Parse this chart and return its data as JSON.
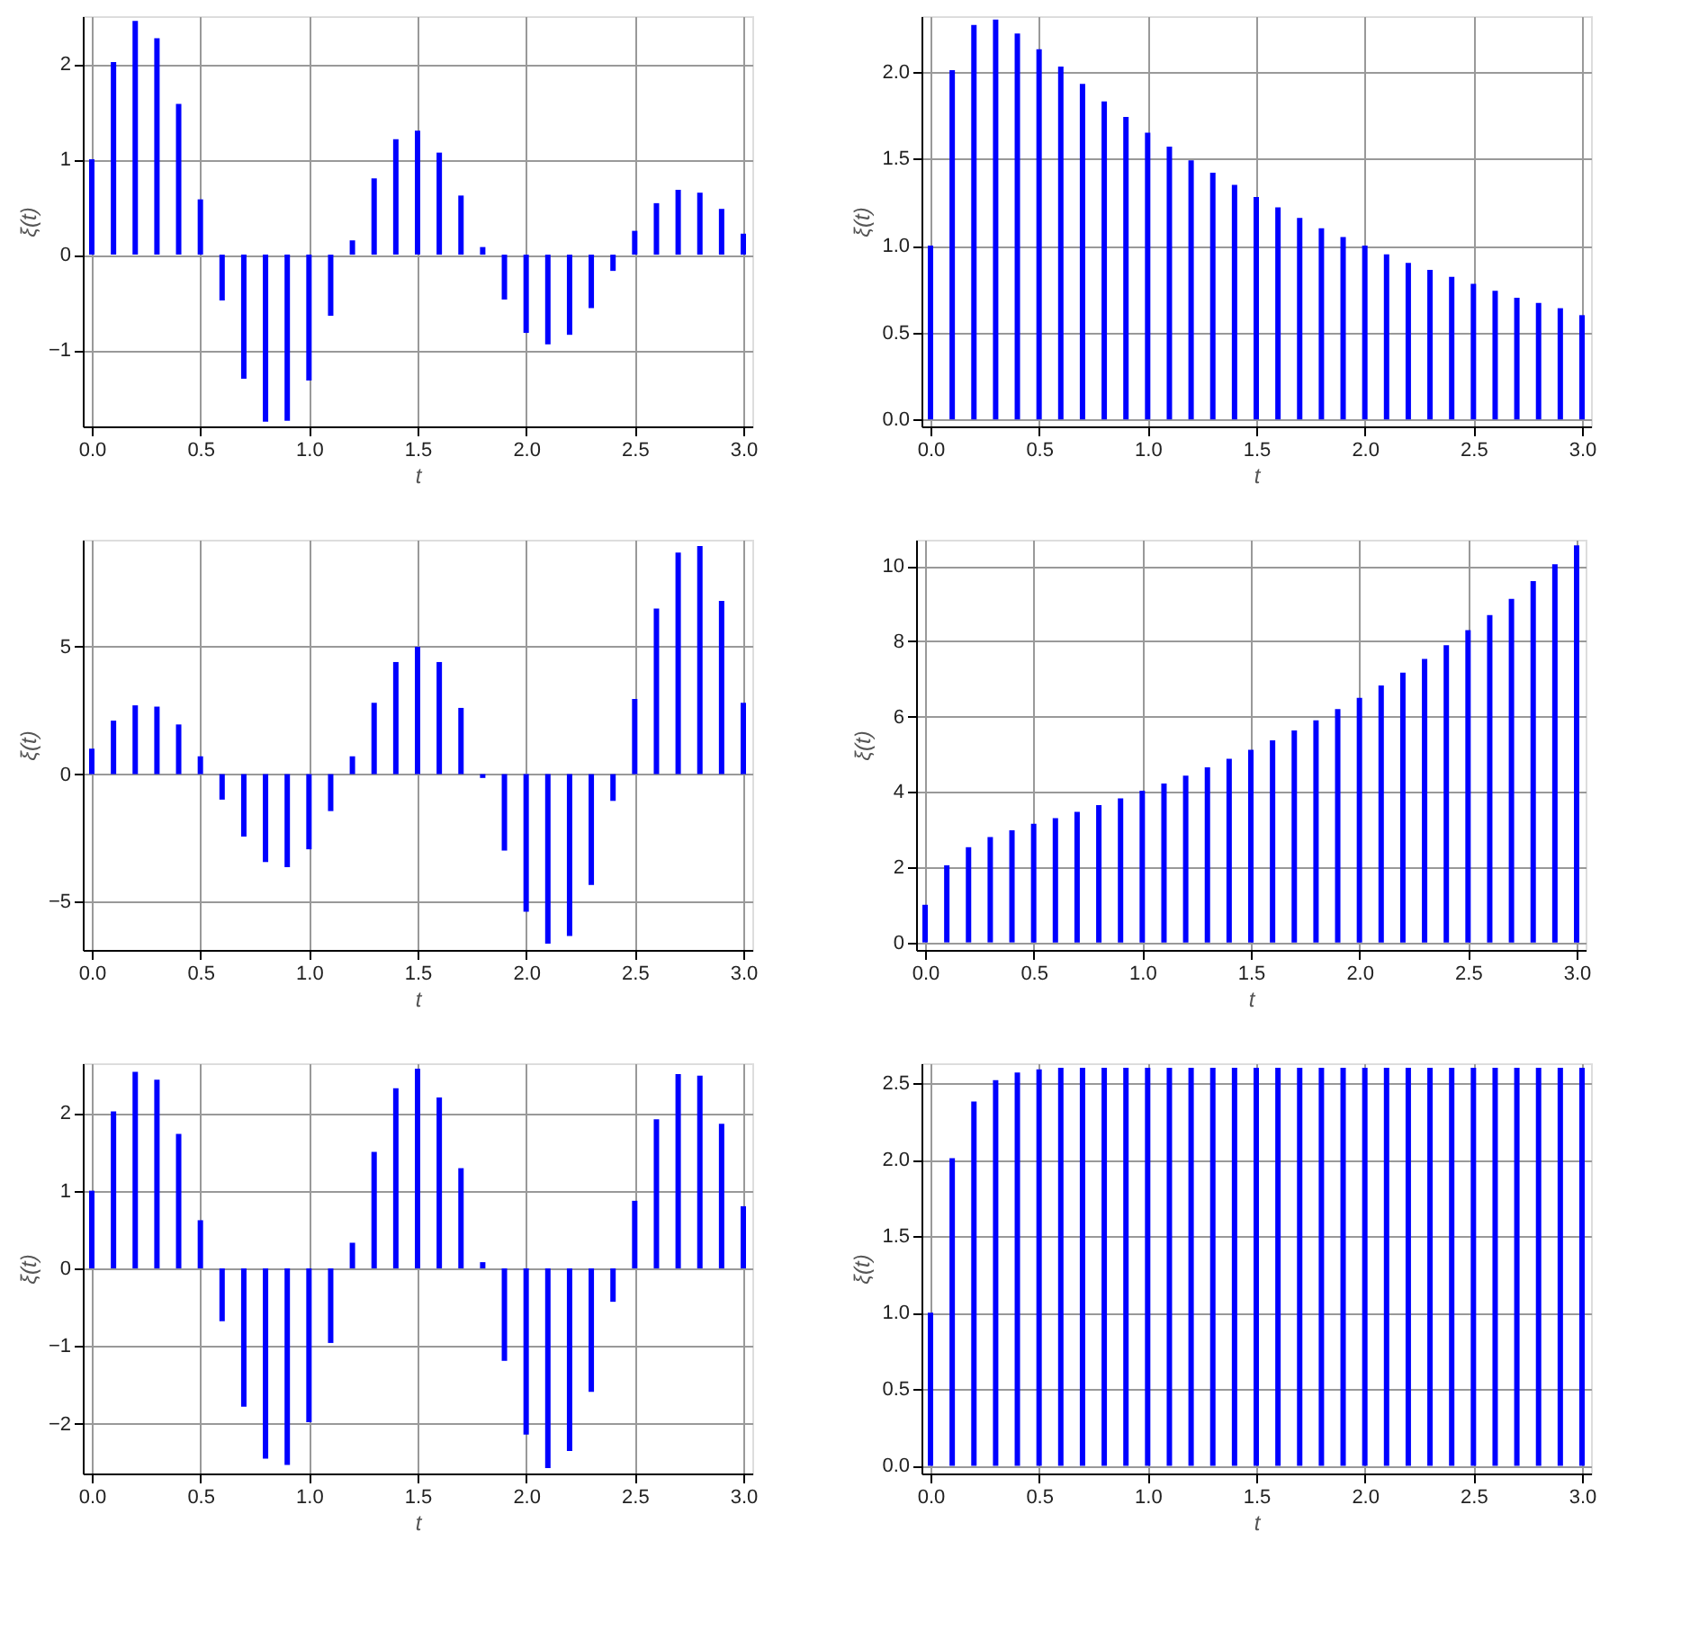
{
  "chart_data": [
    {
      "type": "bar",
      "xlabel": "t",
      "ylabel": "ξ(t)",
      "color": "#0000ff",
      "grid": true,
      "x": [
        0,
        0.1,
        0.2,
        0.3,
        0.4,
        0.5,
        0.6,
        0.7,
        0.8,
        0.9,
        1.0,
        1.1,
        1.2,
        1.3,
        1.4,
        1.5,
        1.6,
        1.7,
        1.8,
        1.9,
        2.0,
        2.1,
        2.2,
        2.3,
        2.4,
        2.5,
        2.6,
        2.7,
        2.8,
        2.9,
        3.0
      ],
      "values": [
        1.0,
        2.02,
        2.45,
        2.27,
        1.58,
        0.58,
        -0.48,
        -1.3,
        -1.75,
        -1.74,
        -1.32,
        -0.64,
        0.15,
        0.8,
        1.21,
        1.3,
        1.07,
        0.62,
        0.08,
        -0.47,
        -0.82,
        -0.94,
        -0.84,
        -0.56,
        -0.17,
        0.25,
        0.54,
        0.68,
        0.65,
        0.48,
        0.22
      ],
      "xlim": [
        0,
        3
      ],
      "xticks": [
        {
          "value": 0,
          "label": "0.0"
        },
        0.5,
        {
          "value": 1,
          "label": "1.0"
        },
        1.5,
        {
          "value": 2,
          "label": "2.0"
        },
        2.5,
        {
          "value": 3,
          "label": "3.0"
        }
      ],
      "ylim": [
        -1.8,
        2.5
      ],
      "yticks": [
        -1,
        0,
        1,
        2
      ]
    },
    {
      "type": "bar",
      "xlabel": "t",
      "ylabel": "ξ(t)",
      "color": "#0000ff",
      "grid": true,
      "x": [
        0,
        0.1,
        0.2,
        0.3,
        0.4,
        0.5,
        0.6,
        0.7,
        0.8,
        0.9,
        1.0,
        1.1,
        1.2,
        1.3,
        1.4,
        1.5,
        1.6,
        1.7,
        1.8,
        1.9,
        2.0,
        2.1,
        2.2,
        2.3,
        2.4,
        2.5,
        2.6,
        2.7,
        2.8,
        2.9,
        3.0
      ],
      "values": [
        1.0,
        2.01,
        2.27,
        2.3,
        2.22,
        2.13,
        2.03,
        1.93,
        1.83,
        1.74,
        1.65,
        1.57,
        1.49,
        1.42,
        1.35,
        1.28,
        1.22,
        1.16,
        1.1,
        1.05,
        1.0,
        0.95,
        0.9,
        0.86,
        0.82,
        0.78,
        0.74,
        0.7,
        0.67,
        0.64,
        0.6
      ],
      "xlim": [
        0,
        3
      ],
      "xticks": [
        {
          "value": 0,
          "label": "0.0"
        },
        0.5,
        {
          "value": 1,
          "label": "1.0"
        },
        1.5,
        {
          "value": 2,
          "label": "2.0"
        },
        2.5,
        {
          "value": 3,
          "label": "3.0"
        }
      ],
      "ylim": [
        -0.04,
        2.32
      ],
      "yticks": [
        {
          "value": 0,
          "label": "0.0"
        },
        0.5,
        {
          "value": 1,
          "label": "1.0"
        },
        1.5,
        {
          "value": 2,
          "label": "2.0"
        }
      ]
    },
    {
      "type": "bar",
      "xlabel": "t",
      "ylabel": "ξ(t)",
      "color": "#0000ff",
      "grid": true,
      "x": [
        0,
        0.1,
        0.2,
        0.3,
        0.4,
        0.5,
        0.6,
        0.7,
        0.8,
        0.9,
        1.0,
        1.1,
        1.2,
        1.3,
        1.4,
        1.5,
        1.6,
        1.7,
        1.8,
        1.9,
        2.0,
        2.1,
        2.2,
        2.3,
        2.4,
        2.5,
        2.6,
        2.7,
        2.8,
        2.9,
        3.0
      ],
      "values": [
        1.0,
        2.1,
        2.7,
        2.65,
        1.95,
        0.7,
        -1.0,
        -2.45,
        -3.45,
        -3.65,
        -2.95,
        -1.45,
        0.7,
        2.8,
        4.4,
        5.0,
        4.4,
        2.6,
        -0.15,
        -3.0,
        -5.4,
        -6.65,
        -6.35,
        -4.35,
        -1.05,
        2.95,
        6.5,
        8.7,
        8.95,
        6.8,
        2.8
      ],
      "xlim": [
        0,
        3
      ],
      "xticks": [
        {
          "value": 0,
          "label": "0.0"
        },
        0.5,
        {
          "value": 1,
          "label": "1.0"
        },
        1.5,
        {
          "value": 2,
          "label": "2.0"
        },
        2.5,
        {
          "value": 3,
          "label": "3.0"
        }
      ],
      "ylim": [
        -6.9,
        9.2
      ],
      "yticks": [
        -5,
        0,
        5
      ]
    },
    {
      "type": "bar",
      "xlabel": "t",
      "ylabel": "ξ(t)",
      "color": "#0000ff",
      "grid": true,
      "x": [
        0,
        0.1,
        0.2,
        0.3,
        0.4,
        0.5,
        0.6,
        0.7,
        0.8,
        0.9,
        1.0,
        1.1,
        1.2,
        1.3,
        1.4,
        1.5,
        1.6,
        1.7,
        1.8,
        1.9,
        2.0,
        2.1,
        2.2,
        2.3,
        2.4,
        2.5,
        2.6,
        2.7,
        2.8,
        2.9,
        3.0
      ],
      "values": [
        1.0,
        2.05,
        2.53,
        2.8,
        2.98,
        3.15,
        3.3,
        3.47,
        3.65,
        3.83,
        4.03,
        4.22,
        4.43,
        4.65,
        4.88,
        5.12,
        5.37,
        5.63,
        5.9,
        6.2,
        6.5,
        6.83,
        7.17,
        7.53,
        7.9,
        8.3,
        8.7,
        9.13,
        9.6,
        10.05,
        10.55
      ],
      "xlim": [
        0,
        3
      ],
      "xticks": [
        {
          "value": 0,
          "label": "0.0"
        },
        0.5,
        {
          "value": 1,
          "label": "1.0"
        },
        1.5,
        {
          "value": 2,
          "label": "2.0"
        },
        2.5,
        {
          "value": 3,
          "label": "3.0"
        }
      ],
      "ylim": [
        -0.2,
        10.7
      ],
      "yticks": [
        0,
        2,
        4,
        6,
        8,
        10
      ]
    },
    {
      "type": "bar",
      "xlabel": "t",
      "ylabel": "ξ(t)",
      "color": "#0000ff",
      "grid": true,
      "x": [
        0,
        0.1,
        0.2,
        0.3,
        0.4,
        0.5,
        0.6,
        0.7,
        0.8,
        0.9,
        1.0,
        1.1,
        1.2,
        1.3,
        1.4,
        1.5,
        1.6,
        1.7,
        1.8,
        1.9,
        2.0,
        2.1,
        2.2,
        2.3,
        2.4,
        2.5,
        2.6,
        2.7,
        2.8,
        2.9,
        3.0
      ],
      "values": [
        1.0,
        2.02,
        2.53,
        2.43,
        1.73,
        0.62,
        -0.68,
        -1.78,
        -2.45,
        -2.53,
        -1.98,
        -0.96,
        0.33,
        1.5,
        2.32,
        2.57,
        2.2,
        1.29,
        0.08,
        -1.19,
        -2.14,
        -2.57,
        -2.35,
        -1.59,
        -0.43,
        0.87,
        1.92,
        2.5,
        2.48,
        1.86,
        0.8
      ],
      "xlim": [
        0,
        3
      ],
      "xticks": [
        {
          "value": 0,
          "label": "0.0"
        },
        0.5,
        {
          "value": 1,
          "label": "1.0"
        },
        1.5,
        {
          "value": 2,
          "label": "2.0"
        },
        2.5,
        {
          "value": 3,
          "label": "3.0"
        }
      ],
      "ylim": [
        -2.64,
        2.64
      ],
      "yticks": [
        -2,
        -1,
        0,
        1,
        2
      ]
    },
    {
      "type": "bar",
      "xlabel": "t",
      "ylabel": "ξ(t)",
      "color": "#0000ff",
      "grid": true,
      "x": [
        0,
        0.1,
        0.2,
        0.3,
        0.4,
        0.5,
        0.6,
        0.7,
        0.8,
        0.9,
        1.0,
        1.1,
        1.2,
        1.3,
        1.4,
        1.5,
        1.6,
        1.7,
        1.8,
        1.9,
        2.0,
        2.1,
        2.2,
        2.3,
        2.4,
        2.5,
        2.6,
        2.7,
        2.8,
        2.9,
        3.0
      ],
      "values": [
        1.0,
        2.01,
        2.38,
        2.52,
        2.57,
        2.59,
        2.6,
        2.6,
        2.6,
        2.6,
        2.6,
        2.6,
        2.6,
        2.6,
        2.6,
        2.6,
        2.6,
        2.6,
        2.6,
        2.6,
        2.6,
        2.6,
        2.6,
        2.6,
        2.6,
        2.6,
        2.6,
        2.6,
        2.6,
        2.6,
        2.6
      ],
      "xlim": [
        0,
        3
      ],
      "xticks": [
        {
          "value": 0,
          "label": "0.0"
        },
        0.5,
        {
          "value": 1,
          "label": "1.0"
        },
        1.5,
        {
          "value": 2,
          "label": "2.0"
        },
        2.5,
        {
          "value": 3,
          "label": "3.0"
        }
      ],
      "ylim": [
        -0.05,
        2.63
      ],
      "yticks": [
        {
          "value": 0,
          "label": "0.0"
        },
        0.5,
        {
          "value": 1,
          "label": "1.0"
        },
        1.5,
        {
          "value": 2,
          "label": "2.0"
        },
        2.5
      ]
    }
  ]
}
